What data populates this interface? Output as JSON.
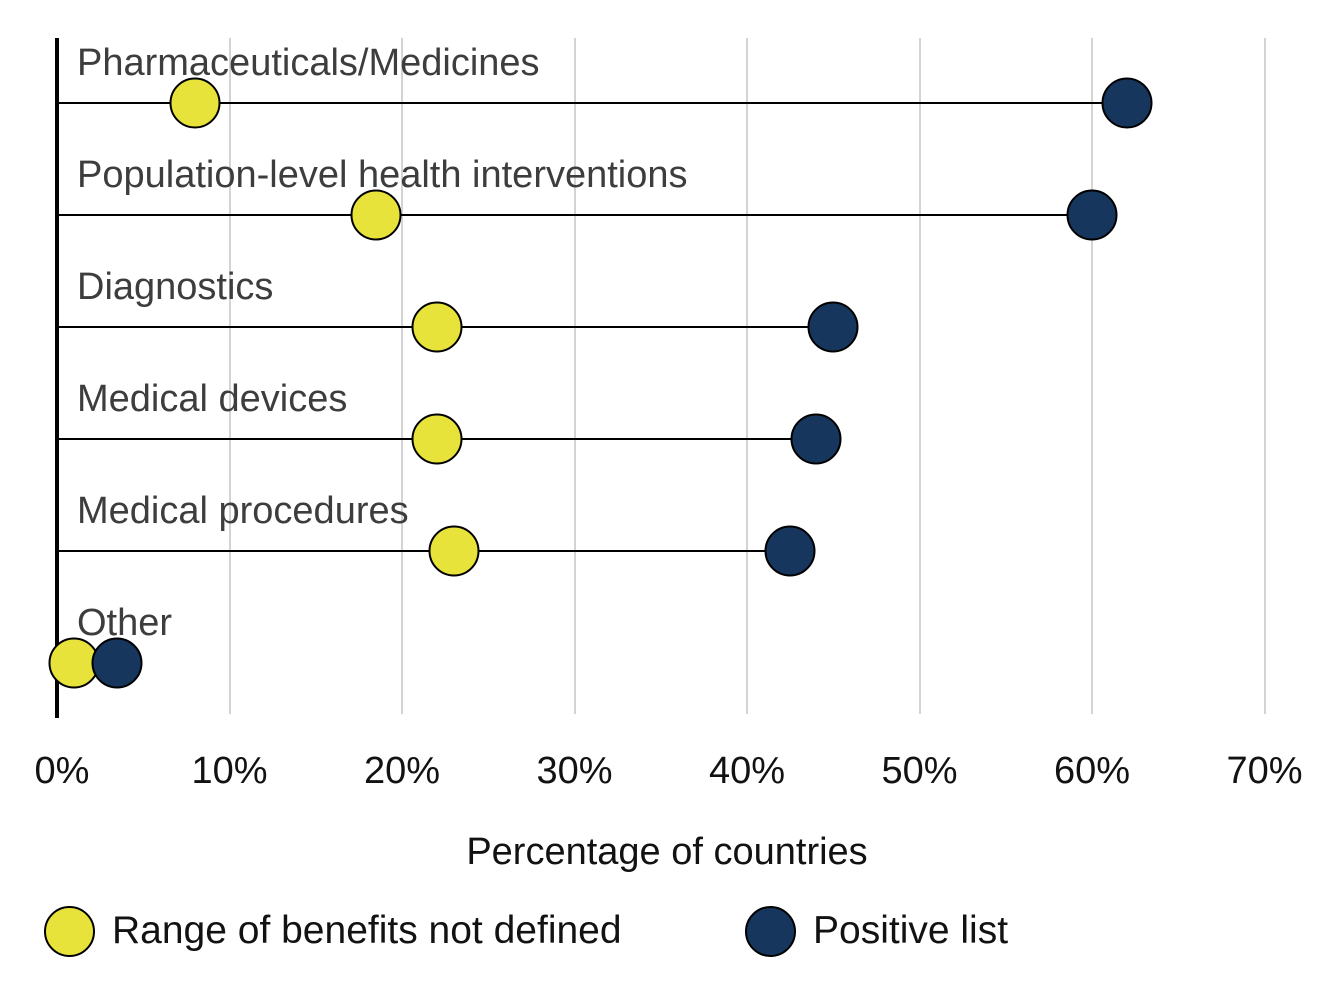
{
  "chart_data": {
    "type": "dumbbell",
    "title": "",
    "categories": [
      "Pharmaceuticals/Medicines",
      "Population-level health interventions",
      "Diagnostics",
      "Medical devices",
      "Medical procedures",
      "Other"
    ],
    "series": [
      {
        "name": "Range of benefits not defined",
        "color": "#e8e33b",
        "values": [
          8,
          18.5,
          22,
          22,
          23,
          1
        ]
      },
      {
        "name": "Positive list",
        "color": "#17365d",
        "values": [
          62,
          60,
          45,
          44,
          42.5,
          3.5
        ]
      }
    ],
    "xlabel": "Percentage of countries",
    "x_ticks": [
      "0%",
      "10%",
      "20%",
      "30%",
      "40%",
      "50%",
      "60%",
      "70%"
    ],
    "x_tick_values": [
      0,
      10,
      20,
      30,
      40,
      50,
      60,
      70
    ],
    "xlim": [
      0,
      74
    ],
    "grid": "vertical-only",
    "gridline_color": "#d4d4d4",
    "axis_color": "#000000",
    "stem_color": "#000000",
    "category_label_color": "#3d3d3d",
    "legend_position": "bottom"
  }
}
